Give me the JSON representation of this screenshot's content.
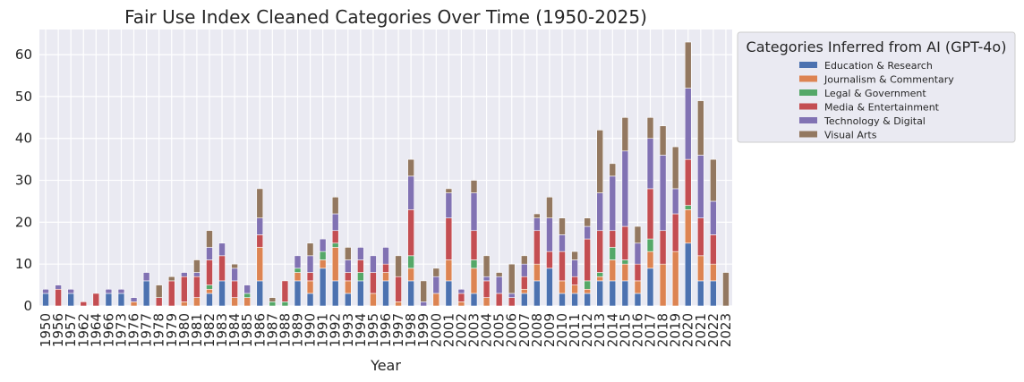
{
  "chart_data": {
    "type": "bar",
    "stacked": true,
    "title": "Fair Use Index Cleaned Categories Over Time (1950-2025)",
    "xlabel": "Year",
    "ylabel": "",
    "ylim": [
      0,
      66
    ],
    "yticks": [
      0,
      10,
      20,
      30,
      40,
      50,
      60
    ],
    "grid": true,
    "legend": {
      "title": "Categories Inferred from AI (GPT-4o)",
      "placement": "outside-right"
    },
    "categories": [
      "1950",
      "1956",
      "1957",
      "1962",
      "1964",
      "1966",
      "1973",
      "1976",
      "1977",
      "1978",
      "1979",
      "1980",
      "1981",
      "1982",
      "1983",
      "1984",
      "1985",
      "1986",
      "1987",
      "1988",
      "1989",
      "1990",
      "1991",
      "1992",
      "1993",
      "1994",
      "1995",
      "1996",
      "1997",
      "1998",
      "1999",
      "2000",
      "2001",
      "2002",
      "2003",
      "2004",
      "2005",
      "2006",
      "2007",
      "2008",
      "2009",
      "2010",
      "2011",
      "2012",
      "2013",
      "2014",
      "2015",
      "2016",
      "2017",
      "2018",
      "2019",
      "2020",
      "2021",
      "2022",
      "2023"
    ],
    "series": [
      {
        "name": "Education & Research",
        "color": "#4c72b0",
        "values": [
          3,
          0,
          3,
          0,
          0,
          3,
          3,
          0,
          6,
          0,
          0,
          0,
          0,
          3,
          6,
          0,
          0,
          6,
          0,
          0,
          6,
          3,
          9,
          6,
          3,
          6,
          0,
          6,
          0,
          6,
          0,
          0,
          6,
          0,
          3,
          0,
          0,
          0,
          3,
          6,
          9,
          3,
          3,
          3,
          6,
          6,
          6,
          3,
          9,
          0,
          0,
          15,
          6,
          6,
          0
        ]
      },
      {
        "name": "Journalism & Commentary",
        "color": "#dd8452",
        "values": [
          0,
          0,
          0,
          0,
          0,
          0,
          0,
          1,
          0,
          0,
          0,
          1,
          2,
          1,
          0,
          2,
          2,
          8,
          0,
          0,
          2,
          3,
          2,
          8,
          3,
          0,
          3,
          2,
          1,
          3,
          0,
          3,
          5,
          1,
          6,
          2,
          0,
          0,
          1,
          4,
          0,
          3,
          2,
          1,
          1,
          5,
          4,
          3,
          4,
          10,
          13,
          8,
          6,
          4,
          0
        ]
      },
      {
        "name": "Legal & Government",
        "color": "#55a868",
        "values": [
          0,
          0,
          0,
          0,
          0,
          0,
          0,
          0,
          0,
          0,
          0,
          0,
          0,
          1,
          0,
          0,
          1,
          0,
          1,
          1,
          1,
          0,
          2,
          1,
          0,
          2,
          0,
          0,
          0,
          3,
          0,
          0,
          0,
          0,
          2,
          0,
          0,
          0,
          0,
          0,
          0,
          0,
          0,
          2,
          1,
          3,
          1,
          0,
          3,
          0,
          0,
          1,
          0,
          0,
          0
        ]
      },
      {
        "name": "Media & Entertainment",
        "color": "#c44e52",
        "values": [
          0,
          4,
          0,
          1,
          3,
          0,
          0,
          0,
          0,
          2,
          6,
          6,
          5,
          6,
          6,
          4,
          0,
          3,
          0,
          5,
          0,
          2,
          0,
          3,
          2,
          3,
          5,
          2,
          6,
          11,
          0,
          0,
          10,
          2,
          7,
          4,
          3,
          2,
          3,
          8,
          4,
          7,
          2,
          10,
          10,
          4,
          8,
          4,
          12,
          8,
          9,
          11,
          9,
          7,
          0
        ]
      },
      {
        "name": "Technology & Digital",
        "color": "#8172b3",
        "values": [
          1,
          1,
          1,
          0,
          0,
          1,
          1,
          1,
          2,
          0,
          0,
          1,
          1,
          3,
          3,
          3,
          2,
          4,
          0,
          0,
          3,
          4,
          3,
          4,
          3,
          3,
          4,
          4,
          0,
          8,
          1,
          4,
          6,
          1,
          9,
          1,
          4,
          1,
          3,
          3,
          8,
          4,
          4,
          3,
          9,
          13,
          18,
          5,
          12,
          18,
          6,
          17,
          15,
          8,
          0
        ]
      },
      {
        "name": "Visual Arts",
        "color": "#937860",
        "values": [
          0,
          0,
          0,
          0,
          0,
          0,
          0,
          0,
          0,
          3,
          1,
          0,
          3,
          4,
          0,
          1,
          0,
          7,
          1,
          0,
          0,
          3,
          0,
          4,
          3,
          0,
          0,
          0,
          5,
          4,
          5,
          2,
          1,
          0,
          3,
          5,
          1,
          7,
          2,
          1,
          5,
          4,
          2,
          2,
          15,
          3,
          8,
          4,
          5,
          7,
          10,
          11,
          13,
          10,
          8
        ]
      }
    ]
  }
}
